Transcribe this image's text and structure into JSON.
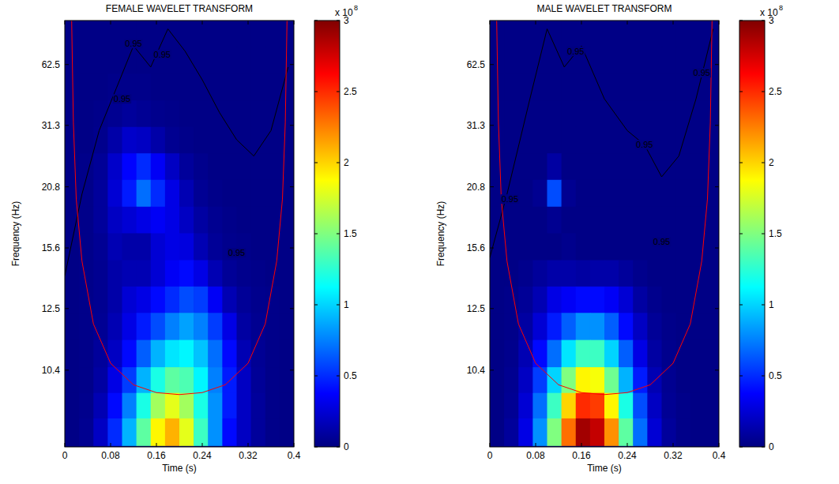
{
  "chart_data": [
    {
      "type": "heatmap",
      "title": "FEMALE WAVELET TRANSFORM",
      "x_label": "Time (s)",
      "y_label": "Frequency (Hz)",
      "x": [
        0.0125,
        0.0375,
        0.0625,
        0.0875,
        0.1125,
        0.1375,
        0.1625,
        0.1875,
        0.2125,
        0.2375,
        0.2625,
        0.2875,
        0.3125,
        0.3375,
        0.3625,
        0.3875
      ],
      "y": [
        125.8,
        67.0,
        45.7,
        34.6,
        27.9,
        23.4,
        20.1,
        17.6,
        15.7,
        14.1,
        12.9,
        11.8,
        10.9,
        10.1,
        9.5,
        8.9
      ],
      "values": [
        [
          0.02,
          0.02,
          0.02,
          0.02,
          0.02,
          0.02,
          0.02,
          0.02,
          0.02,
          0.02,
          0.02,
          0.02,
          0.02,
          0.02,
          0.02,
          0.02
        ],
        [
          0.02,
          0.02,
          0.02,
          0.02,
          0.02,
          0.02,
          0.02,
          0.02,
          0.02,
          0.02,
          0.02,
          0.02,
          0.02,
          0.02,
          0.02,
          0.02
        ],
        [
          0.02,
          0.02,
          0.02,
          0.03,
          0.03,
          0.03,
          0.02,
          0.02,
          0.02,
          0.02,
          0.02,
          0.02,
          0.02,
          0.02,
          0.02,
          0.02
        ],
        [
          0.02,
          0.02,
          0.03,
          0.05,
          0.08,
          0.06,
          0.04,
          0.03,
          0.02,
          0.02,
          0.02,
          0.02,
          0.02,
          0.02,
          0.02,
          0.02
        ],
        [
          0.02,
          0.02,
          0.04,
          0.12,
          0.22,
          0.2,
          0.12,
          0.05,
          0.03,
          0.02,
          0.02,
          0.02,
          0.02,
          0.02,
          0.02,
          0.02
        ],
        [
          0.02,
          0.03,
          0.07,
          0.22,
          0.38,
          0.5,
          0.35,
          0.2,
          0.08,
          0.04,
          0.02,
          0.02,
          0.02,
          0.02,
          0.02,
          0.02
        ],
        [
          0.02,
          0.03,
          0.08,
          0.25,
          0.45,
          0.7,
          0.5,
          0.3,
          0.15,
          0.06,
          0.03,
          0.02,
          0.02,
          0.02,
          0.02,
          0.02
        ],
        [
          0.02,
          0.03,
          0.08,
          0.2,
          0.25,
          0.3,
          0.35,
          0.3,
          0.2,
          0.1,
          0.05,
          0.03,
          0.02,
          0.02,
          0.02,
          0.02
        ],
        [
          0.02,
          0.03,
          0.06,
          0.15,
          0.12,
          0.12,
          0.25,
          0.3,
          0.28,
          0.15,
          0.07,
          0.04,
          0.03,
          0.02,
          0.02,
          0.02
        ],
        [
          0.02,
          0.03,
          0.05,
          0.12,
          0.15,
          0.15,
          0.25,
          0.35,
          0.4,
          0.3,
          0.15,
          0.07,
          0.04,
          0.03,
          0.02,
          0.02
        ],
        [
          0.02,
          0.03,
          0.05,
          0.12,
          0.25,
          0.3,
          0.4,
          0.5,
          0.6,
          0.55,
          0.35,
          0.15,
          0.07,
          0.04,
          0.03,
          0.02
        ],
        [
          0.02,
          0.03,
          0.06,
          0.15,
          0.3,
          0.45,
          0.6,
          0.75,
          0.85,
          0.75,
          0.55,
          0.3,
          0.1,
          0.05,
          0.03,
          0.02
        ],
        [
          0.02,
          0.03,
          0.08,
          0.2,
          0.4,
          0.65,
          0.9,
          1.05,
          1.1,
          0.95,
          0.7,
          0.4,
          0.15,
          0.06,
          0.03,
          0.02
        ],
        [
          0.02,
          0.03,
          0.1,
          0.3,
          0.55,
          0.9,
          1.2,
          1.4,
          1.35,
          1.1,
          0.75,
          0.45,
          0.2,
          0.07,
          0.03,
          0.02
        ],
        [
          0.02,
          0.04,
          0.15,
          0.4,
          0.75,
          1.2,
          1.6,
          1.8,
          1.6,
          1.2,
          0.8,
          0.45,
          0.2,
          0.08,
          0.03,
          0.02
        ],
        [
          0.02,
          0.05,
          0.2,
          0.5,
          0.9,
          1.4,
          1.9,
          2.1,
          1.8,
          1.3,
          0.8,
          0.4,
          0.2,
          0.08,
          0.03,
          0.02
        ]
      ],
      "xlim": [
        0,
        0.4
      ],
      "ylim": [
        224,
        8.6
      ],
      "xticks": [
        0,
        0.08,
        0.16,
        0.24,
        0.32,
        0.4
      ],
      "yticks": [
        62.5,
        31.3,
        20.8,
        15.6,
        12.5,
        10.4
      ],
      "colorbar_lim": [
        0,
        3
      ],
      "colorbar_ticks": [
        0,
        0.5,
        1,
        1.5,
        2,
        2.5,
        3
      ],
      "colorbar_multiplier": "x 10",
      "colorbar_exponent": "8",
      "cone_of_influence": {
        "color": "#ff0000",
        "x": [
          0.012,
          0.015,
          0.02,
          0.03,
          0.05,
          0.08,
          0.12,
          0.16,
          0.2,
          0.24,
          0.28,
          0.32,
          0.35,
          0.37,
          0.38,
          0.385,
          0.388
        ],
        "y": [
          224,
          32.1,
          19.5,
          14.8,
          11.9,
          10.6,
          10.0,
          9.8,
          9.75,
          9.8,
          10.0,
          10.6,
          11.9,
          14.8,
          19.5,
          32.1,
          224
        ]
      },
      "significance_contours": [
        {
          "x": [
            0.0,
            0.03,
            0.06,
            0.09,
            0.12,
            0.15,
            0.18,
            0.21,
            0.24,
            0.27,
            0.3,
            0.33,
            0.36,
            0.39
          ],
          "y": [
            14,
            20,
            30,
            45,
            90,
            60,
            150,
            80,
            50,
            35,
            28,
            25,
            30,
            60
          ]
        }
      ],
      "annotations": [
        {
          "text": "0.95",
          "x": 0.1,
          "y": 40
        },
        {
          "text": "0.95",
          "x": 0.12,
          "y": 95
        },
        {
          "text": "0.95",
          "x": 0.17,
          "y": 75
        },
        {
          "text": "0.95",
          "x": 0.3,
          "y": 15.3
        }
      ]
    },
    {
      "type": "heatmap",
      "title": "MALE WAVELET TRANSFORM",
      "x_label": "Time (s)",
      "y_label": "Frequency (Hz)",
      "x": [
        0.0125,
        0.0375,
        0.0625,
        0.0875,
        0.1125,
        0.1375,
        0.1625,
        0.1875,
        0.2125,
        0.2375,
        0.2625,
        0.2875,
        0.3125,
        0.3375,
        0.3625,
        0.3875
      ],
      "y": [
        125.8,
        67.0,
        45.7,
        34.6,
        27.9,
        23.4,
        20.1,
        17.6,
        15.7,
        14.1,
        12.9,
        11.8,
        10.9,
        10.1,
        9.5,
        8.9
      ],
      "values": [
        [
          0.02,
          0.02,
          0.02,
          0.02,
          0.02,
          0.02,
          0.02,
          0.02,
          0.02,
          0.02,
          0.02,
          0.02,
          0.02,
          0.02,
          0.02,
          0.02
        ],
        [
          0.02,
          0.02,
          0.02,
          0.02,
          0.02,
          0.02,
          0.02,
          0.02,
          0.02,
          0.02,
          0.02,
          0.02,
          0.02,
          0.02,
          0.02,
          0.02
        ],
        [
          0.02,
          0.02,
          0.02,
          0.02,
          0.02,
          0.02,
          0.02,
          0.02,
          0.02,
          0.02,
          0.02,
          0.02,
          0.02,
          0.02,
          0.02,
          0.02
        ],
        [
          0.02,
          0.02,
          0.02,
          0.02,
          0.02,
          0.02,
          0.02,
          0.02,
          0.02,
          0.02,
          0.02,
          0.02,
          0.02,
          0.02,
          0.02,
          0.02
        ],
        [
          0.02,
          0.02,
          0.02,
          0.02,
          0.02,
          0.02,
          0.02,
          0.02,
          0.02,
          0.02,
          0.02,
          0.02,
          0.02,
          0.02,
          0.02,
          0.02
        ],
        [
          0.02,
          0.02,
          0.02,
          0.02,
          0.1,
          0.02,
          0.02,
          0.02,
          0.02,
          0.02,
          0.02,
          0.02,
          0.02,
          0.02,
          0.02,
          0.02
        ],
        [
          0.02,
          0.02,
          0.02,
          0.05,
          0.6,
          0.05,
          0.02,
          0.02,
          0.02,
          0.02,
          0.02,
          0.02,
          0.02,
          0.02,
          0.02,
          0.02
        ],
        [
          0.02,
          0.02,
          0.02,
          0.02,
          0.05,
          0.02,
          0.02,
          0.02,
          0.02,
          0.02,
          0.02,
          0.02,
          0.02,
          0.02,
          0.02,
          0.02
        ],
        [
          0.02,
          0.02,
          0.02,
          0.02,
          0.02,
          0.04,
          0.02,
          0.02,
          0.02,
          0.02,
          0.02,
          0.02,
          0.02,
          0.02,
          0.02,
          0.02
        ],
        [
          0.02,
          0.02,
          0.04,
          0.08,
          0.12,
          0.12,
          0.1,
          0.12,
          0.12,
          0.08,
          0.04,
          0.02,
          0.02,
          0.02,
          0.02,
          0.02
        ],
        [
          0.02,
          0.03,
          0.07,
          0.15,
          0.3,
          0.35,
          0.4,
          0.4,
          0.35,
          0.25,
          0.1,
          0.04,
          0.02,
          0.02,
          0.02,
          0.02
        ],
        [
          0.02,
          0.03,
          0.1,
          0.25,
          0.45,
          0.65,
          0.8,
          0.8,
          0.65,
          0.4,
          0.2,
          0.07,
          0.03,
          0.02,
          0.02,
          0.02
        ],
        [
          0.02,
          0.04,
          0.15,
          0.4,
          0.7,
          1.05,
          1.3,
          1.3,
          1.0,
          0.65,
          0.3,
          0.1,
          0.04,
          0.02,
          0.02,
          0.02
        ],
        [
          0.02,
          0.05,
          0.2,
          0.55,
          1.0,
          1.5,
          1.9,
          1.85,
          1.45,
          0.9,
          0.45,
          0.15,
          0.05,
          0.02,
          0.02,
          0.02
        ],
        [
          0.02,
          0.06,
          0.25,
          0.7,
          1.3,
          2.0,
          2.5,
          2.45,
          1.9,
          1.2,
          0.6,
          0.2,
          0.06,
          0.03,
          0.02,
          0.02
        ],
        [
          0.02,
          0.08,
          0.3,
          0.8,
          1.5,
          2.3,
          2.9,
          2.8,
          2.2,
          1.4,
          0.7,
          0.25,
          0.08,
          0.03,
          0.02,
          0.02
        ]
      ],
      "xlim": [
        0,
        0.4
      ],
      "ylim": [
        224,
        8.6
      ],
      "xticks": [
        0,
        0.08,
        0.16,
        0.24,
        0.32,
        0.4
      ],
      "yticks": [
        62.5,
        31.3,
        20.8,
        15.6,
        12.5,
        10.4
      ],
      "colorbar_lim": [
        0,
        3
      ],
      "colorbar_ticks": [
        0,
        0.5,
        1,
        1.5,
        2,
        2.5,
        3
      ],
      "colorbar_multiplier": "x 10",
      "colorbar_exponent": "8",
      "cone_of_influence": {
        "color": "#ff0000",
        "x": [
          0.012,
          0.015,
          0.02,
          0.03,
          0.05,
          0.08,
          0.12,
          0.16,
          0.2,
          0.24,
          0.28,
          0.32,
          0.35,
          0.37,
          0.38,
          0.385,
          0.388
        ],
        "y": [
          224,
          32.1,
          19.5,
          14.8,
          11.9,
          10.6,
          10.0,
          9.8,
          9.75,
          9.8,
          10.0,
          10.6,
          11.9,
          14.8,
          19.5,
          32.1,
          224
        ]
      },
      "significance_contours": [
        {
          "x": [
            0.0,
            0.03,
            0.07,
            0.1,
            0.13,
            0.16,
            0.2,
            0.24,
            0.27,
            0.3,
            0.33,
            0.36,
            0.39
          ],
          "y": [
            15,
            20,
            40,
            150,
            60,
            90,
            40,
            30,
            27,
            22,
            25,
            40,
            150
          ]
        }
      ],
      "annotations": [
        {
          "text": "0.95",
          "x": 0.15,
          "y": 80
        },
        {
          "text": "0.95",
          "x": 0.27,
          "y": 27
        },
        {
          "text": "0.95",
          "x": 0.035,
          "y": 19.5
        },
        {
          "text": "0.95",
          "x": 0.3,
          "y": 16
        },
        {
          "text": "0.95",
          "x": 0.37,
          "y": 55
        }
      ]
    }
  ]
}
